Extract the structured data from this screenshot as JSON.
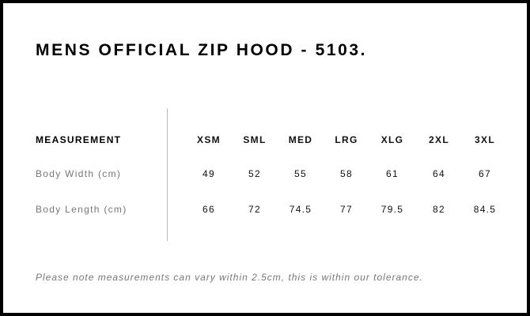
{
  "title": "MENS OFFICIAL ZIP HOOD - 5103.",
  "table": {
    "header_label": "MEASUREMENT",
    "sizes": [
      "XSM",
      "SML",
      "MED",
      "LRG",
      "XLG",
      "2XL",
      "3XL"
    ],
    "rows": [
      {
        "label": "Body Width (cm)",
        "values": [
          "49",
          "52",
          "55",
          "58",
          "61",
          "64",
          "67"
        ]
      },
      {
        "label": "Body Length (cm)",
        "values": [
          "66",
          "72",
          "74.5",
          "77",
          "79.5",
          "82",
          "84.5"
        ]
      }
    ]
  },
  "note": "Please note measurements can vary within 2.5cm, this is within our tolerance."
}
